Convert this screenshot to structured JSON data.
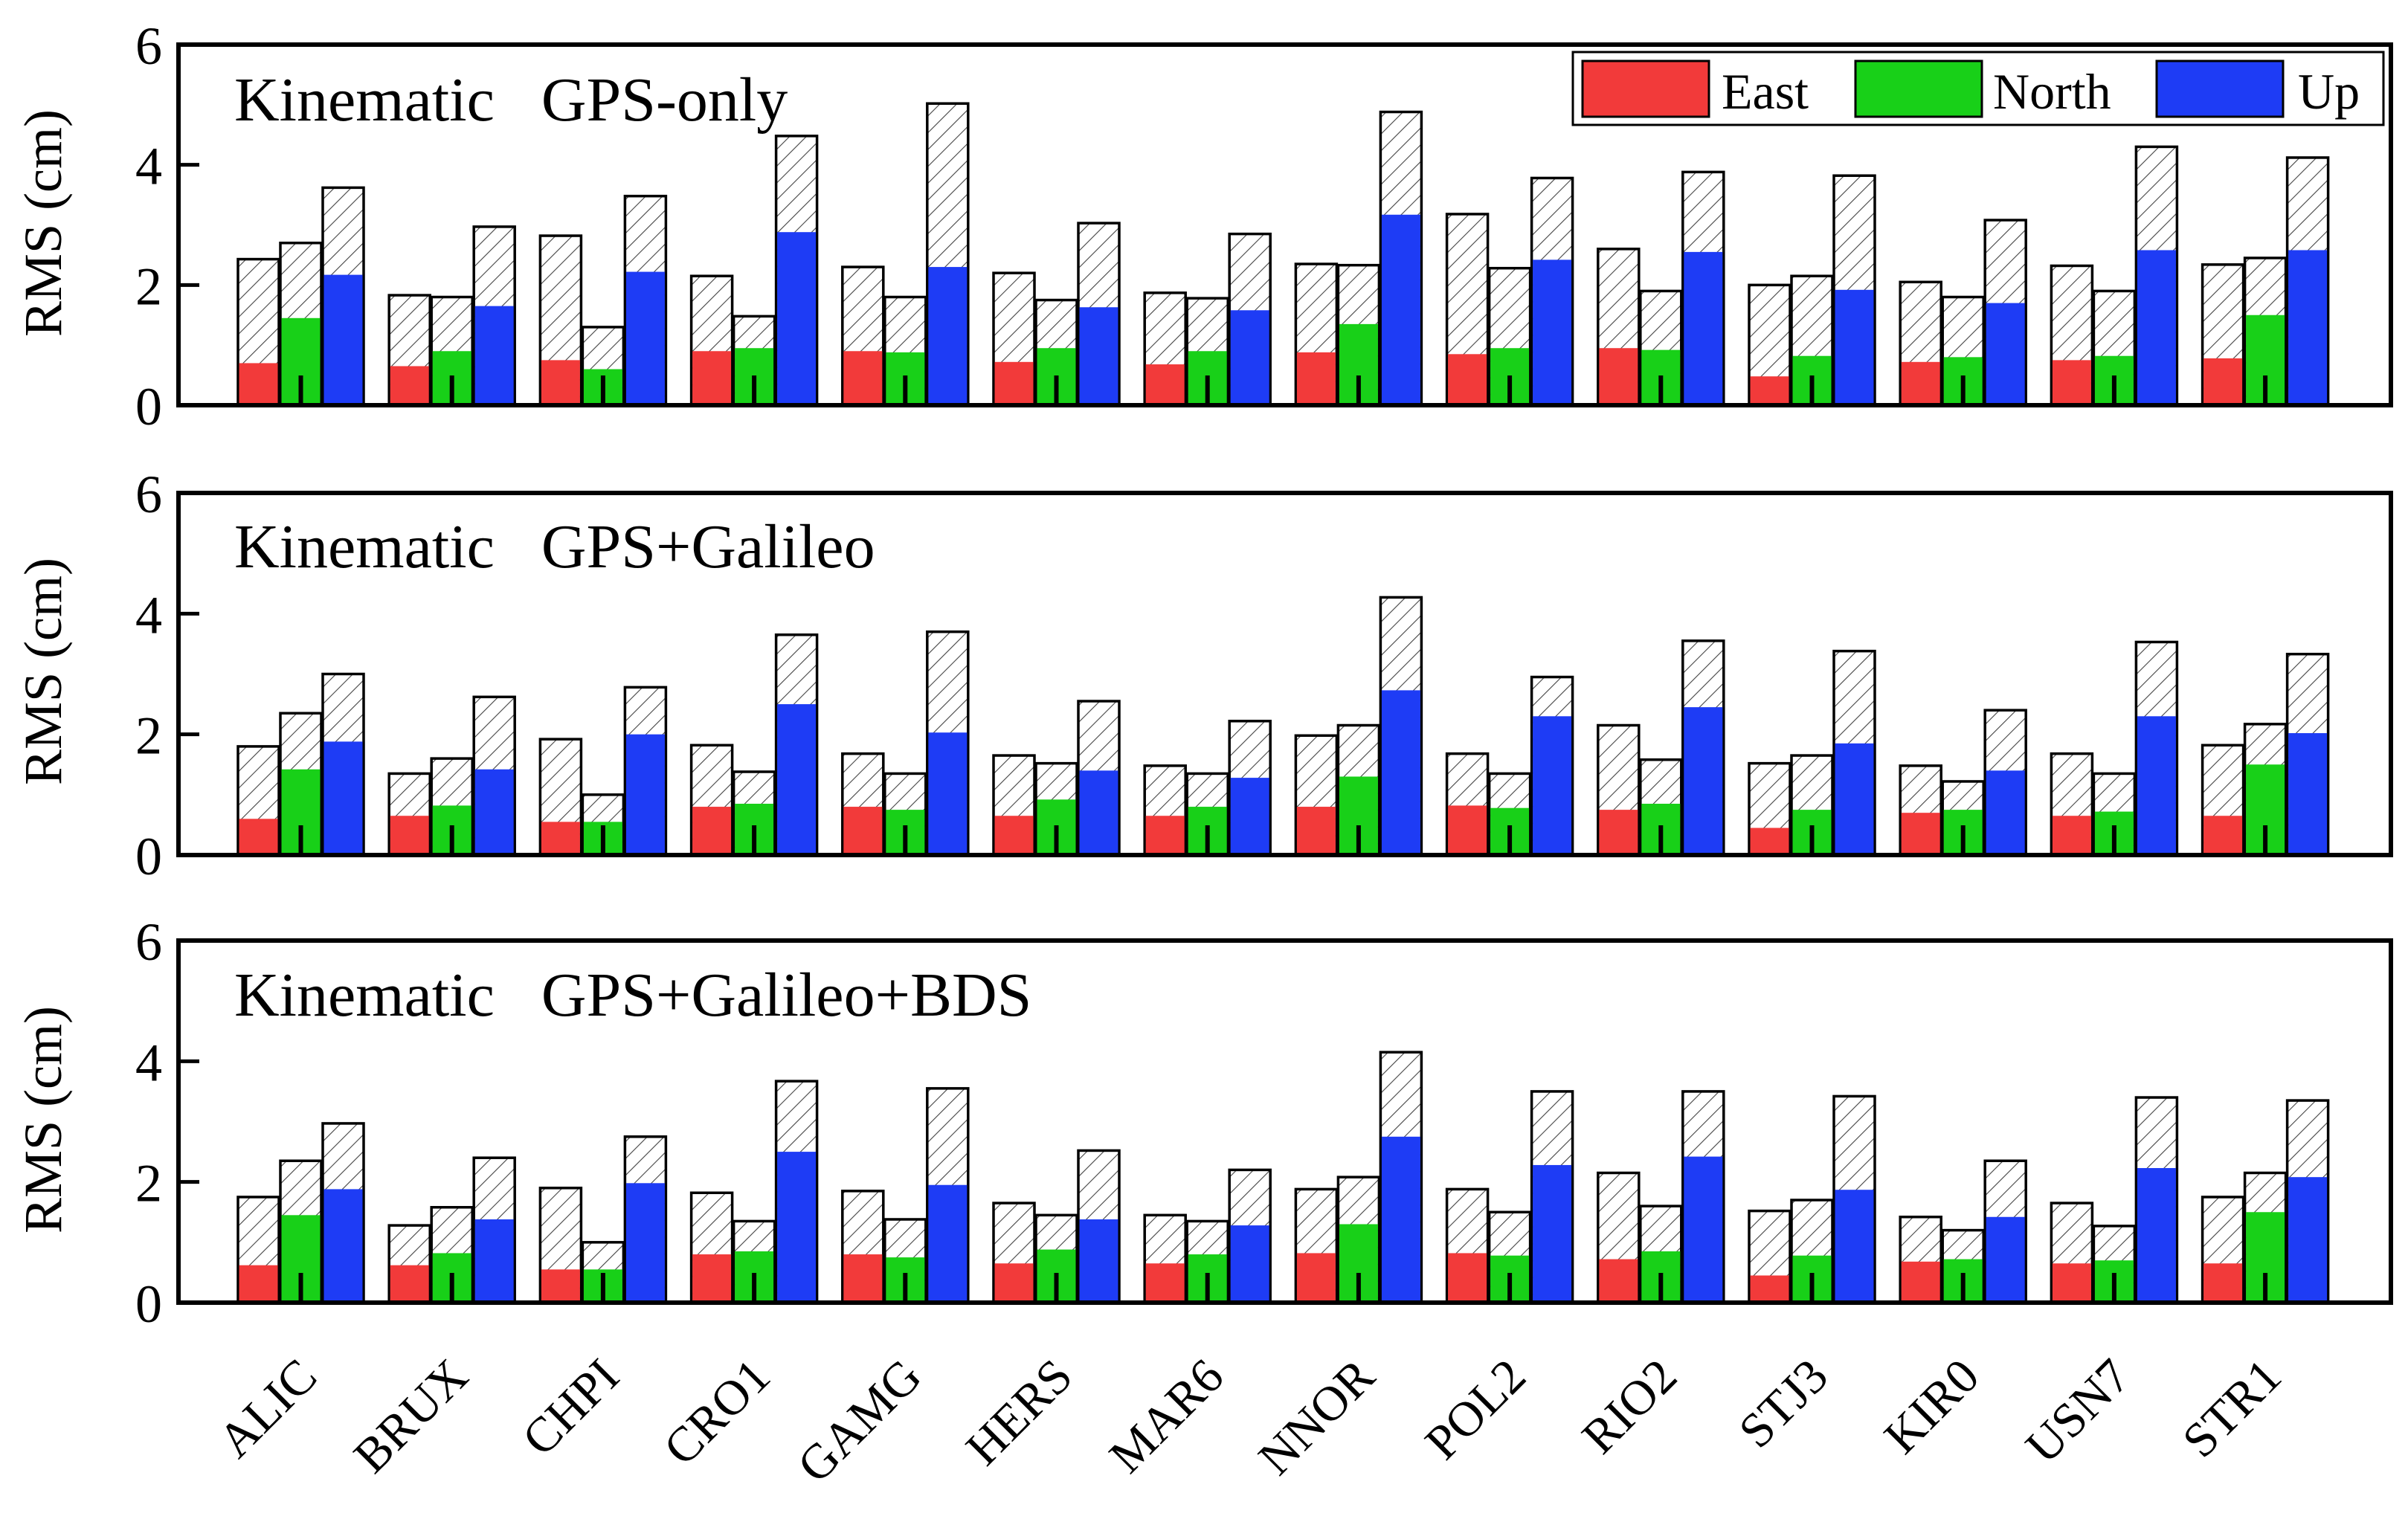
{
  "chart_data": [
    {
      "type": "bar",
      "title": "Kinematic   GPS-only",
      "ylabel": "RMS (cm)",
      "ylim": [
        0,
        6
      ],
      "yticks": [
        0,
        2,
        4,
        6
      ],
      "categories": [
        "ALIC",
        "BRUX",
        "CHPI",
        "CRO1",
        "GAMG",
        "HERS",
        "MAR6",
        "NNOR",
        "POL2",
        "RIO2",
        "STJ3",
        "KIR0",
        "USN7",
        "STR1"
      ],
      "series": [
        {
          "name": "East",
          "values": [
            0.7,
            0.65,
            0.75,
            0.9,
            0.9,
            0.72,
            0.68,
            0.88,
            0.85,
            0.95,
            0.48,
            0.72,
            0.75,
            0.78
          ],
          "totals": [
            2.43,
            1.83,
            2.82,
            2.15,
            2.3,
            2.2,
            1.87,
            2.35,
            3.18,
            2.6,
            2.0,
            2.05,
            2.32,
            2.34
          ]
        },
        {
          "name": "North",
          "values": [
            1.45,
            0.9,
            0.6,
            0.95,
            0.88,
            0.95,
            0.9,
            1.35,
            0.95,
            0.92,
            0.82,
            0.8,
            0.82,
            1.5
          ],
          "totals": [
            2.7,
            1.8,
            1.3,
            1.48,
            1.8,
            1.75,
            1.78,
            2.33,
            2.28,
            1.9,
            2.15,
            1.8,
            1.9,
            2.45
          ]
        },
        {
          "name": "Up",
          "values": [
            2.17,
            1.65,
            2.22,
            2.88,
            2.3,
            1.63,
            1.58,
            3.17,
            2.42,
            2.55,
            1.92,
            1.7,
            2.58,
            2.58
          ],
          "totals": [
            3.62,
            2.97,
            3.48,
            4.48,
            5.02,
            3.03,
            2.85,
            4.88,
            3.78,
            3.88,
            3.82,
            3.08,
            4.3,
            4.12
          ]
        }
      ]
    },
    {
      "type": "bar",
      "title": "Kinematic   GPS+Galileo",
      "ylabel": "RMS (cm)",
      "ylim": [
        0,
        6
      ],
      "yticks": [
        0,
        2,
        4,
        6
      ],
      "categories": [
        "ALIC",
        "BRUX",
        "CHPI",
        "CRO1",
        "GAMG",
        "HERS",
        "MAR6",
        "NNOR",
        "POL2",
        "RIO2",
        "STJ3",
        "KIR0",
        "USN7",
        "STR1"
      ],
      "series": [
        {
          "name": "East",
          "values": [
            0.6,
            0.65,
            0.55,
            0.8,
            0.8,
            0.65,
            0.65,
            0.8,
            0.82,
            0.75,
            0.45,
            0.7,
            0.65,
            0.65
          ],
          "totals": [
            1.8,
            1.35,
            1.92,
            1.82,
            1.68,
            1.65,
            1.48,
            1.98,
            1.68,
            2.15,
            1.52,
            1.48,
            1.68,
            1.82
          ]
        },
        {
          "name": "North",
          "values": [
            1.42,
            0.82,
            0.55,
            0.85,
            0.75,
            0.92,
            0.8,
            1.3,
            0.78,
            0.85,
            0.75,
            0.75,
            0.72,
            1.5
          ],
          "totals": [
            2.35,
            1.6,
            1.0,
            1.38,
            1.35,
            1.52,
            1.35,
            2.15,
            1.35,
            1.58,
            1.65,
            1.22,
            1.35,
            2.17
          ]
        },
        {
          "name": "Up",
          "values": [
            1.88,
            1.42,
            2.0,
            2.5,
            2.03,
            1.4,
            1.28,
            2.73,
            2.3,
            2.45,
            1.85,
            1.4,
            2.3,
            2.02
          ],
          "totals": [
            3.0,
            2.62,
            2.78,
            3.65,
            3.7,
            2.55,
            2.22,
            4.27,
            2.95,
            3.55,
            3.38,
            2.4,
            3.53,
            3.33
          ]
        }
      ]
    },
    {
      "type": "bar",
      "title": "Kinematic   GPS+Galileo+BDS",
      "ylabel": "RMS (cm)",
      "ylim": [
        0,
        6
      ],
      "yticks": [
        0,
        2,
        4,
        6
      ],
      "categories": [
        "ALIC",
        "BRUX",
        "CHPI",
        "CRO1",
        "GAMG",
        "HERS",
        "MAR6",
        "NNOR",
        "POL2",
        "RIO2",
        "STJ3",
        "KIR0",
        "USN7",
        "STR1"
      ],
      "series": [
        {
          "name": "East",
          "values": [
            0.62,
            0.62,
            0.55,
            0.8,
            0.8,
            0.65,
            0.65,
            0.82,
            0.82,
            0.72,
            0.45,
            0.68,
            0.65,
            0.65
          ],
          "totals": [
            1.75,
            1.28,
            1.9,
            1.82,
            1.85,
            1.65,
            1.45,
            1.88,
            1.88,
            2.15,
            1.52,
            1.42,
            1.65,
            1.75
          ]
        },
        {
          "name": "North",
          "values": [
            1.45,
            0.82,
            0.55,
            0.85,
            0.75,
            0.88,
            0.8,
            1.3,
            0.78,
            0.85,
            0.78,
            0.72,
            0.7,
            1.5
          ],
          "totals": [
            2.35,
            1.58,
            1.0,
            1.35,
            1.38,
            1.45,
            1.35,
            2.08,
            1.5,
            1.6,
            1.7,
            1.2,
            1.27,
            2.15
          ]
        },
        {
          "name": "Up",
          "values": [
            1.88,
            1.38,
            1.98,
            2.5,
            1.95,
            1.38,
            1.28,
            2.75,
            2.28,
            2.42,
            1.87,
            1.42,
            2.23,
            2.08
          ],
          "totals": [
            2.97,
            2.4,
            2.75,
            3.67,
            3.55,
            2.52,
            2.2,
            4.15,
            3.5,
            3.5,
            3.42,
            2.35,
            3.4,
            3.35
          ]
        }
      ]
    }
  ],
  "legend": [
    {
      "label": "East",
      "color": "#f23a3a"
    },
    {
      "label": "North",
      "color": "#18d018"
    },
    {
      "label": "Up",
      "color": "#1e3cf5"
    }
  ]
}
